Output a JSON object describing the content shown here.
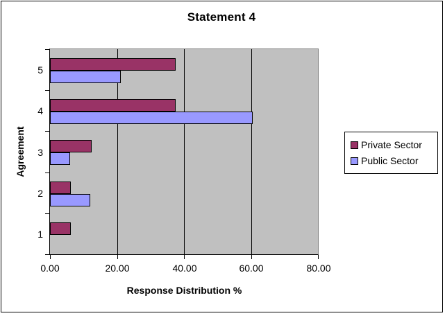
{
  "chart_data": {
    "type": "bar",
    "orientation": "horizontal",
    "title": "Statement 4",
    "xlabel": "Response Distribution %",
    "ylabel": "Agreement",
    "categories": [
      "5",
      "4",
      "3",
      "2",
      "1"
    ],
    "series": [
      {
        "name": "Private Sector",
        "color": "#993366",
        "values": [
          37.5,
          37.5,
          12.5,
          6.25,
          6.25
        ]
      },
      {
        "name": "Public Sector",
        "color": "#9999FF",
        "values": [
          21.21,
          60.61,
          6.06,
          12.12,
          0
        ]
      }
    ],
    "xlim": [
      0,
      80
    ],
    "xtick_labels": [
      "0.00",
      "20.00",
      "40.00",
      "60.00",
      "80.00"
    ],
    "gridlines_at": [
      20,
      40,
      60,
      80
    ],
    "grid": "vertical",
    "legend_position": "right",
    "plot_background": "#C0C0C0"
  }
}
